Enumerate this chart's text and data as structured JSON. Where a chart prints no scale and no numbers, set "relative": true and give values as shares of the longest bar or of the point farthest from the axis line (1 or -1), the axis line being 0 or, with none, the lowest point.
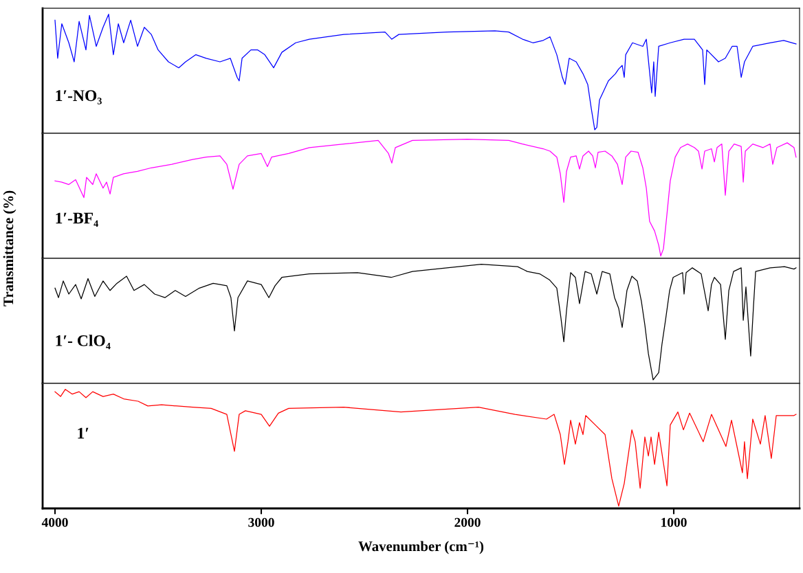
{
  "chart_data": [
    {
      "type": "line",
      "relative": true,
      "xlim": [
        4060,
        390
      ],
      "tick_labels": false,
      "x": [
        4000,
        3987,
        3967,
        3933,
        3907,
        3883,
        3850,
        3833,
        3800,
        3767,
        3740,
        3717,
        3693,
        3667,
        3633,
        3600,
        3567,
        3533,
        3500,
        3450,
        3400,
        3367,
        3317,
        3267,
        3200,
        3150,
        3117,
        3107,
        3093,
        3050,
        3017,
        2983,
        2940,
        2900,
        2833,
        2767,
        2600,
        2400,
        2367,
        2333,
        2100,
        1867,
        1800,
        1733,
        1683,
        1633,
        1600,
        1567,
        1540,
        1527,
        1507,
        1473,
        1440,
        1417,
        1400,
        1383,
        1373,
        1360,
        1317,
        1283,
        1267,
        1250,
        1240,
        1233,
        1200,
        1150,
        1133,
        1107,
        1097,
        1090,
        1073,
        1017,
        950,
        900,
        860,
        850,
        840,
        783,
        750,
        717,
        693,
        673,
        657,
        617,
        533,
        467,
        407
      ],
      "series": [
        {
          "name": "1′-NO₃",
          "color": "#0000ff",
          "values": [
            0.95,
            0.63,
            0.92,
            0.76,
            0.6,
            0.94,
            0.7,
            0.99,
            0.73,
            0.89,
            1.0,
            0.66,
            0.92,
            0.76,
            0.95,
            0.73,
            0.89,
            0.83,
            0.7,
            0.6,
            0.55,
            0.6,
            0.66,
            0.63,
            0.6,
            0.63,
            0.47,
            0.44,
            0.63,
            0.7,
            0.7,
            0.66,
            0.55,
            0.68,
            0.76,
            0.79,
            0.83,
            0.85,
            0.79,
            0.83,
            0.85,
            0.86,
            0.85,
            0.79,
            0.76,
            0.78,
            0.81,
            0.66,
            0.47,
            0.41,
            0.63,
            0.6,
            0.5,
            0.41,
            0.21,
            0.03,
            0.05,
            0.28,
            0.44,
            0.5,
            0.54,
            0.57,
            0.47,
            0.66,
            0.76,
            0.73,
            0.79,
            0.34,
            0.6,
            0.31,
            0.73,
            0.76,
            0.79,
            0.79,
            0.7,
            0.41,
            0.7,
            0.6,
            0.63,
            0.73,
            0.73,
            0.47,
            0.6,
            0.73,
            0.76,
            0.78,
            0.75
          ]
        }
      ]
    },
    {
      "type": "line",
      "relative": true,
      "xlim": [
        4060,
        390
      ],
      "tick_labels": false,
      "x": [
        4000,
        3967,
        3933,
        3900,
        3873,
        3860,
        3847,
        3817,
        3800,
        3767,
        3750,
        3733,
        3717,
        3667,
        3600,
        3533,
        3433,
        3333,
        3267,
        3200,
        3167,
        3137,
        3107,
        3067,
        3000,
        2970,
        2950,
        2867,
        2767,
        2600,
        2433,
        2383,
        2367,
        2350,
        2267,
        2000,
        1800,
        1733,
        1633,
        1600,
        1567,
        1550,
        1533,
        1520,
        1500,
        1473,
        1457,
        1440,
        1413,
        1393,
        1380,
        1367,
        1333,
        1300,
        1273,
        1250,
        1233,
        1207,
        1173,
        1150,
        1133,
        1117,
        1093,
        1073,
        1063,
        1050,
        1033,
        1017,
        993,
        967,
        933,
        900,
        880,
        863,
        850,
        817,
        803,
        790,
        767,
        750,
        733,
        707,
        673,
        663,
        653,
        617,
        567,
        533,
        520,
        500,
        450,
        417,
        407
      ],
      "series": [
        {
          "name": "1′-BF₄",
          "color": "#ff00ff",
          "values": [
            0.65,
            0.64,
            0.62,
            0.66,
            0.56,
            0.51,
            0.68,
            0.62,
            0.71,
            0.59,
            0.64,
            0.54,
            0.68,
            0.71,
            0.73,
            0.76,
            0.79,
            0.83,
            0.85,
            0.86,
            0.79,
            0.58,
            0.79,
            0.86,
            0.88,
            0.77,
            0.85,
            0.88,
            0.93,
            0.96,
            0.99,
            0.88,
            0.8,
            0.93,
            0.99,
            1.0,
            0.99,
            0.96,
            0.92,
            0.9,
            0.85,
            0.71,
            0.47,
            0.73,
            0.85,
            0.86,
            0.75,
            0.86,
            0.9,
            0.86,
            0.76,
            0.89,
            0.9,
            0.86,
            0.79,
            0.62,
            0.85,
            0.9,
            0.89,
            0.76,
            0.59,
            0.31,
            0.23,
            0.11,
            0.02,
            0.08,
            0.37,
            0.65,
            0.85,
            0.93,
            0.96,
            0.93,
            0.9,
            0.75,
            0.9,
            0.92,
            0.81,
            0.93,
            0.96,
            0.53,
            0.9,
            0.96,
            0.94,
            0.64,
            0.9,
            0.96,
            0.93,
            0.96,
            0.79,
            0.93,
            0.97,
            0.93,
            0.85
          ]
        }
      ]
    },
    {
      "type": "line",
      "relative": true,
      "xlim": [
        4060,
        390
      ],
      "tick_labels": false,
      "ylabel": "Transmittance (%)",
      "x": [
        4000,
        3983,
        3960,
        3933,
        3900,
        3873,
        3840,
        3807,
        3767,
        3733,
        3700,
        3653,
        3617,
        3567,
        3517,
        3467,
        3417,
        3367,
        3300,
        3233,
        3167,
        3147,
        3130,
        3113,
        3067,
        3000,
        2963,
        2933,
        2900,
        2767,
        2533,
        2370,
        2267,
        2100,
        1933,
        1757,
        1710,
        1650,
        1603,
        1567,
        1547,
        1533,
        1520,
        1500,
        1477,
        1457,
        1430,
        1400,
        1373,
        1347,
        1310,
        1287,
        1267,
        1250,
        1227,
        1203,
        1177,
        1157,
        1140,
        1123,
        1100,
        1073,
        1057,
        1040,
        1020,
        1003,
        957,
        950,
        940,
        910,
        867,
        833,
        817,
        803,
        773,
        750,
        733,
        710,
        673,
        663,
        650,
        640,
        627,
        613,
        603,
        533,
        463,
        417,
        407
      ],
      "series": [
        {
          "name": "1′- ClO₄",
          "color": "#000000",
          "values": [
            0.8,
            0.72,
            0.86,
            0.75,
            0.83,
            0.71,
            0.88,
            0.73,
            0.86,
            0.78,
            0.84,
            0.9,
            0.78,
            0.83,
            0.75,
            0.72,
            0.78,
            0.73,
            0.8,
            0.84,
            0.82,
            0.72,
            0.44,
            0.72,
            0.86,
            0.83,
            0.72,
            0.82,
            0.89,
            0.92,
            0.93,
            0.89,
            0.94,
            0.97,
            1.0,
            0.98,
            0.94,
            0.92,
            0.87,
            0.8,
            0.55,
            0.35,
            0.61,
            0.93,
            0.89,
            0.67,
            0.94,
            0.92,
            0.75,
            0.94,
            0.92,
            0.72,
            0.63,
            0.47,
            0.78,
            0.9,
            0.86,
            0.69,
            0.49,
            0.25,
            0.03,
            0.09,
            0.33,
            0.53,
            0.78,
            0.89,
            0.93,
            0.75,
            0.93,
            0.97,
            0.92,
            0.61,
            0.83,
            0.89,
            0.83,
            0.37,
            0.78,
            0.94,
            0.97,
            0.53,
            0.81,
            0.55,
            0.23,
            0.66,
            0.94,
            0.97,
            0.98,
            0.96,
            0.97
          ]
        }
      ]
    },
    {
      "type": "line",
      "relative": true,
      "xlim": [
        4060,
        390
      ],
      "tick_labels": "x",
      "xticks": [
        4000,
        3000,
        2000,
        1000
      ],
      "xlabel": "Wavenumber (cm⁻¹)",
      "x": [
        4000,
        3973,
        3950,
        3917,
        3883,
        3850,
        3817,
        3767,
        3717,
        3667,
        3597,
        3550,
        3483,
        3407,
        3333,
        3243,
        3167,
        3130,
        3107,
        3077,
        3000,
        2960,
        2917,
        2867,
        2600,
        2323,
        1947,
        1770,
        1617,
        1580,
        1550,
        1530,
        1513,
        1500,
        1477,
        1457,
        1440,
        1427,
        1380,
        1333,
        1300,
        1267,
        1240,
        1203,
        1187,
        1163,
        1140,
        1123,
        1110,
        1093,
        1073,
        1033,
        1017,
        980,
        953,
        923,
        857,
        817,
        747,
        720,
        667,
        657,
        643,
        617,
        580,
        557,
        527,
        503,
        417,
        407
      ],
      "series": [
        {
          "name": "1′",
          "color": "#ff0000",
          "values": [
            0.98,
            0.94,
            1.0,
            0.96,
            0.98,
            0.93,
            0.98,
            0.94,
            0.96,
            0.92,
            0.9,
            0.86,
            0.87,
            0.86,
            0.85,
            0.84,
            0.79,
            0.48,
            0.79,
            0.82,
            0.79,
            0.69,
            0.8,
            0.84,
            0.85,
            0.81,
            0.85,
            0.79,
            0.75,
            0.79,
            0.62,
            0.37,
            0.56,
            0.74,
            0.54,
            0.72,
            0.62,
            0.78,
            0.7,
            0.62,
            0.25,
            0.02,
            0.21,
            0.66,
            0.56,
            0.17,
            0.6,
            0.44,
            0.6,
            0.37,
            0.64,
            0.19,
            0.7,
            0.81,
            0.66,
            0.8,
            0.56,
            0.79,
            0.52,
            0.74,
            0.3,
            0.56,
            0.25,
            0.75,
            0.54,
            0.78,
            0.42,
            0.78,
            0.78,
            0.79
          ]
        }
      ]
    }
  ]
}
